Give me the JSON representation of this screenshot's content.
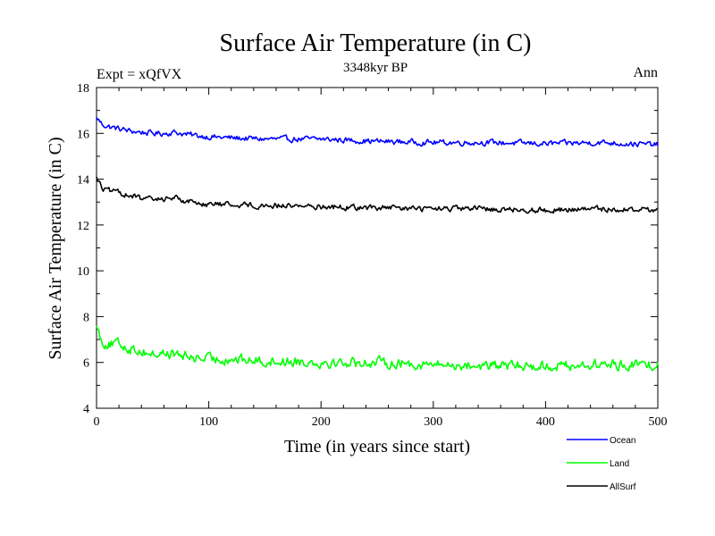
{
  "chart_data": {
    "type": "line",
    "title": "Surface Air Temperature (in C)",
    "subtitle": "3348kyr BP",
    "experiment_label": "Expt = xQfVX",
    "season_label": "Ann",
    "xlabel": "Time (in years since start)",
    "ylabel": "Surface Air Temperature (in C)",
    "xlim": [
      0,
      500
    ],
    "ylim": [
      4,
      18
    ],
    "xticks": [
      0,
      100,
      200,
      300,
      400,
      500
    ],
    "yticks": [
      4,
      6,
      8,
      10,
      12,
      14,
      16,
      18
    ],
    "grid": false,
    "legend_position": "bottom-right",
    "noise_note": "series drawn with interannual noise around the trend values below",
    "series": [
      {
        "name": "Ocean",
        "color": "#0000ff",
        "noise_amplitude": 0.12,
        "x": [
          0,
          5,
          10,
          20,
          30,
          40,
          50,
          60,
          70,
          80,
          100,
          120,
          150,
          180,
          200,
          250,
          300,
          350,
          400,
          450,
          500
        ],
        "values": [
          16.7,
          16.4,
          16.3,
          16.2,
          16.1,
          16.05,
          16.0,
          16.0,
          16.05,
          15.95,
          15.85,
          15.8,
          15.75,
          15.75,
          15.75,
          15.65,
          15.6,
          15.6,
          15.55,
          15.6,
          15.5
        ]
      },
      {
        "name": "Land",
        "color": "#00ff00",
        "noise_amplitude": 0.22,
        "x": [
          0,
          5,
          10,
          20,
          30,
          40,
          50,
          60,
          70,
          80,
          100,
          120,
          150,
          180,
          200,
          250,
          300,
          350,
          400,
          450,
          500
        ],
        "values": [
          7.6,
          6.9,
          6.8,
          6.8,
          6.6,
          6.5,
          6.35,
          6.4,
          6.35,
          6.25,
          6.15,
          6.15,
          6.05,
          6.05,
          6.0,
          6.0,
          5.9,
          5.85,
          5.85,
          5.9,
          5.9
        ]
      },
      {
        "name": "AllSurf",
        "color": "#000000",
        "noise_amplitude": 0.12,
        "x": [
          0,
          5,
          10,
          20,
          30,
          40,
          50,
          60,
          70,
          80,
          100,
          120,
          150,
          180,
          200,
          250,
          300,
          350,
          400,
          450,
          500
        ],
        "values": [
          14.1,
          13.6,
          13.5,
          13.4,
          13.3,
          13.15,
          13.1,
          13.15,
          13.2,
          13.05,
          12.9,
          12.9,
          12.85,
          12.85,
          12.8,
          12.75,
          12.7,
          12.7,
          12.65,
          12.7,
          12.65
        ]
      }
    ]
  }
}
